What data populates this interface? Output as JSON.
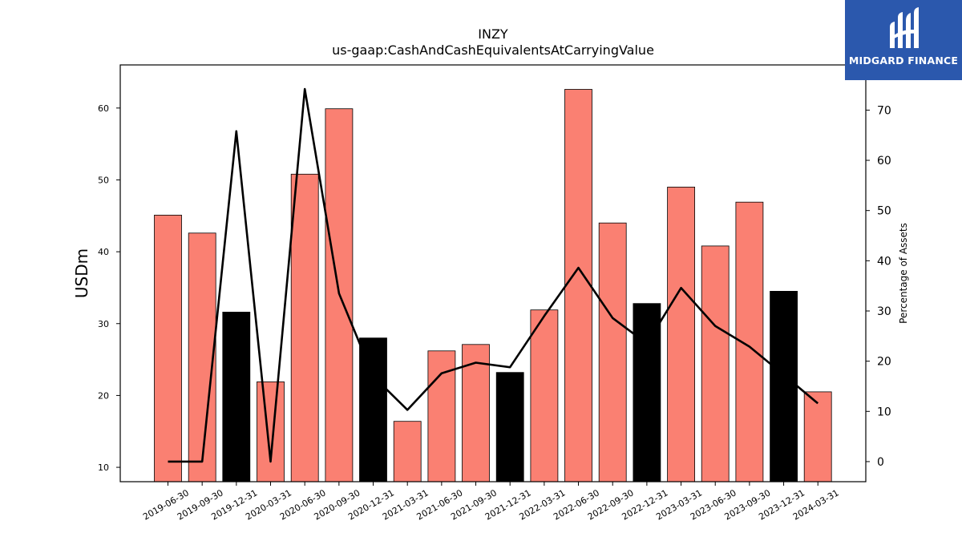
{
  "brand": {
    "name": "MIDGARD FINANCE",
    "color": "#2b58ad"
  },
  "chart_data": {
    "type": "bar",
    "title": "INZY",
    "subtitle": "us-gaap:CashAndCashEquivalentsAtCarryingValue",
    "ylabel": "USDm",
    "y2label": "Percentage of Assets",
    "ylim": [
      8,
      66
    ],
    "y_ticks": [
      10,
      20,
      30,
      40,
      50,
      60
    ],
    "y2lim": [
      -4,
      79
    ],
    "y2_ticks": [
      0,
      10,
      20,
      30,
      40,
      50,
      60,
      70
    ],
    "grid": false,
    "categories": [
      "2019-06-30",
      "2019-09-30",
      "2019-12-31",
      "2020-03-31",
      "2020-06-30",
      "2020-09-30",
      "2020-12-31",
      "2021-03-31",
      "2021-06-30",
      "2021-09-30",
      "2021-12-31",
      "2022-03-31",
      "2022-06-30",
      "2022-09-30",
      "2022-12-31",
      "2023-03-31",
      "2023-06-30",
      "2023-09-30",
      "2023-12-31",
      "2024-03-31"
    ],
    "series": [
      {
        "kind": "bar",
        "values": [
          45.1,
          42.6,
          31.6,
          21.9,
          50.8,
          59.9,
          28.0,
          16.4,
          26.2,
          27.1,
          23.2,
          31.9,
          62.6,
          44.0,
          32.8,
          49.0,
          40.8,
          46.9,
          34.5,
          20.5
        ],
        "colors": [
          "#fa8072",
          "#fa8072",
          "#000000",
          "#fa8072",
          "#fa8072",
          "#fa8072",
          "#000000",
          "#fa8072",
          "#fa8072",
          "#fa8072",
          "#000000",
          "#fa8072",
          "#fa8072",
          "#fa8072",
          "#000000",
          "#fa8072",
          "#fa8072",
          "#fa8072",
          "#000000",
          "#fa8072"
        ]
      },
      {
        "kind": "line",
        "axis": "right",
        "color": "#000000",
        "values": [
          0.0,
          0.0,
          65.8,
          0.0,
          74.2,
          33.5,
          17.0,
          10.3,
          17.6,
          19.7,
          18.8,
          29.0,
          38.6,
          28.6,
          23.5,
          34.6,
          27.0,
          22.9,
          17.3,
          11.6
        ]
      }
    ]
  }
}
